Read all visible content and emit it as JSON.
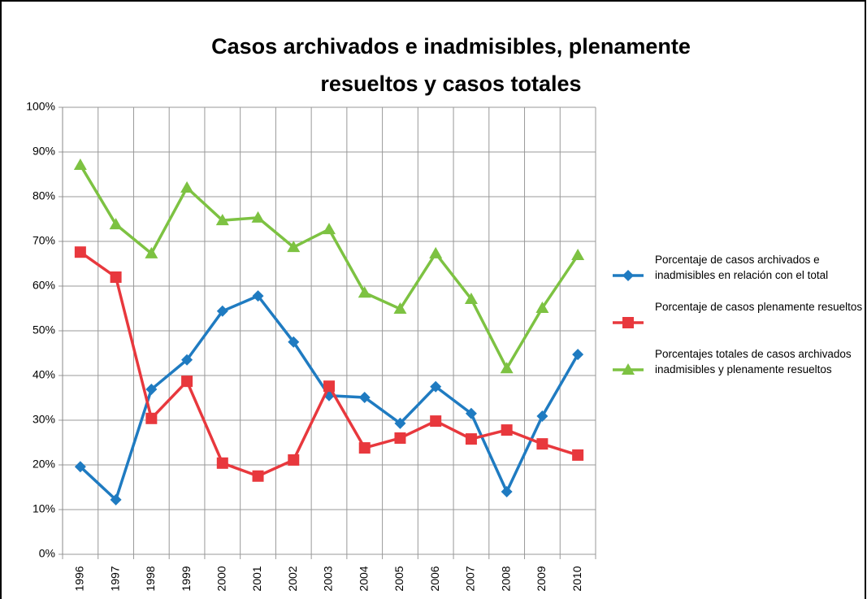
{
  "chart_data": {
    "type": "line",
    "title": "Casos archivados e inadmisibles, plenamente resueltos y casos totales",
    "categories": [
      "1996",
      "1997",
      "1998",
      "1999",
      "2000",
      "2001",
      "2002",
      "2003",
      "2004",
      "2005",
      "2006",
      "2007",
      "2008",
      "2009",
      "2010"
    ],
    "series": [
      {
        "name": "Porcentaje de casos archivados e inadmisibles en relación con el total",
        "color": "#1f7bc1",
        "marker": "diamond",
        "values": [
          19.6,
          12.2,
          36.9,
          43.5,
          54.4,
          57.8,
          47.5,
          35.5,
          35.1,
          29.3,
          37.5,
          31.5,
          14.0,
          30.9,
          44.7
        ]
      },
      {
        "name": "Porcentaje de casos plenamente resueltos",
        "color": "#e8383d",
        "marker": "square",
        "values": [
          67.6,
          62.0,
          30.4,
          38.7,
          20.4,
          17.5,
          21.1,
          37.6,
          23.8,
          26.0,
          29.8,
          25.8,
          27.8,
          24.7,
          22.2
        ]
      },
      {
        "name": "Porcentajes totales de casos archivados inadmisibles y plenamente resueltos",
        "color": "#7dc242",
        "marker": "triangle",
        "values": [
          87.1,
          73.8,
          67.3,
          82.0,
          74.7,
          75.3,
          68.7,
          72.7,
          58.5,
          54.9,
          67.3,
          57.1,
          41.6,
          55.1,
          66.9
        ]
      }
    ],
    "ylim": [
      0,
      100
    ],
    "yticks": [
      {
        "value": 0,
        "label": "0%"
      },
      {
        "value": 10,
        "label": "10%"
      },
      {
        "value": 20,
        "label": "20%"
      },
      {
        "value": 30,
        "label": "30%"
      },
      {
        "value": 40,
        "label": "40%"
      },
      {
        "value": 50,
        "label": "50%"
      },
      {
        "value": 60,
        "label": "60%"
      },
      {
        "value": 70,
        "label": "70%"
      },
      {
        "value": 80,
        "label": "80%"
      },
      {
        "value": 90,
        "label": "90%"
      },
      {
        "value": 100,
        "label": "100%"
      }
    ],
    "grid": true,
    "legend": "right"
  }
}
